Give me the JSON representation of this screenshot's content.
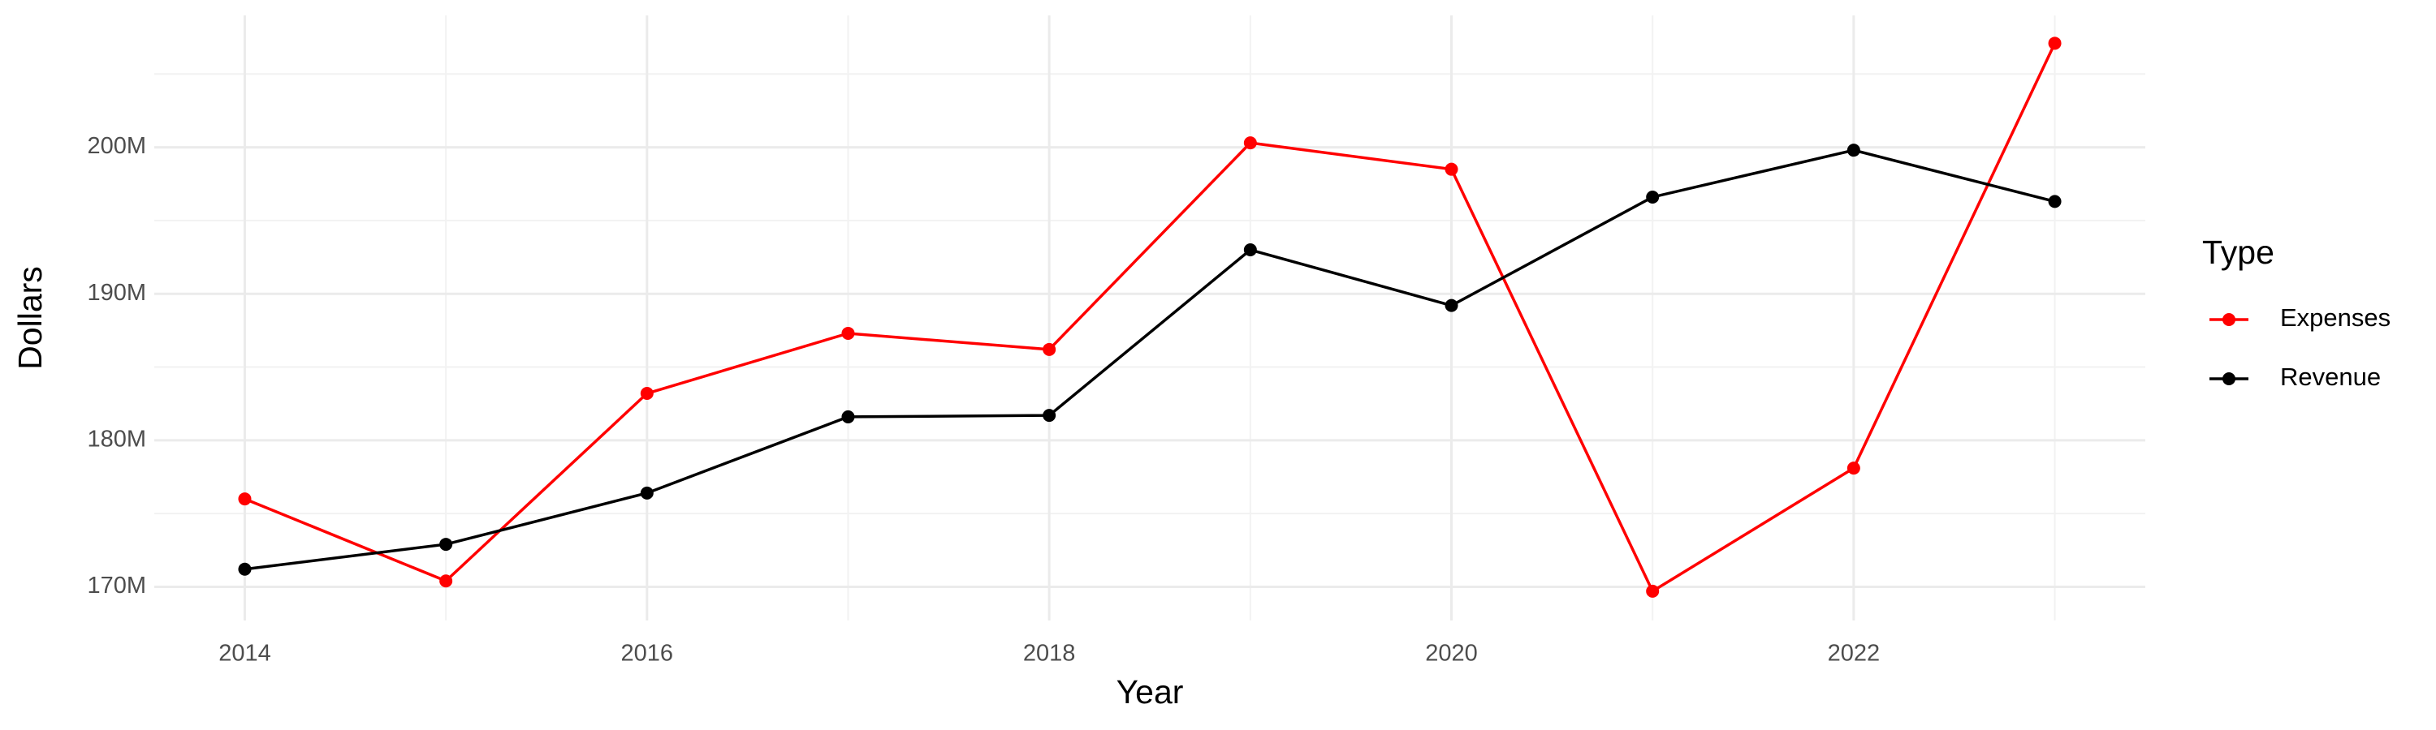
{
  "chart_data": {
    "type": "line",
    "x_label": "Year",
    "y_label": "Dollars",
    "legend_title": "Type",
    "x": [
      2014,
      2015,
      2016,
      2017,
      2018,
      2019,
      2020,
      2021,
      2022,
      2023
    ],
    "series": [
      {
        "name": "Expenses",
        "color": "#ff0000",
        "values": [
          176000000,
          170400000,
          183200000,
          187300000,
          186200000,
          200300000,
          198500000,
          169700000,
          178100000,
          207100000
        ]
      },
      {
        "name": "Revenue",
        "color": "#000000",
        "values": [
          171200000,
          172900000,
          176400000,
          181600000,
          181700000,
          193000000,
          189200000,
          196600000,
          199800000,
          196300000
        ]
      }
    ],
    "xlim": [
      2013.55,
      2023.45
    ],
    "xticks": [
      2014,
      2016,
      2018,
      2020,
      2022
    ],
    "ylim": [
      167700000,
      209000000
    ],
    "yticks": [
      {
        "value": 170000000,
        "label": "170M"
      },
      {
        "value": 180000000,
        "label": "180M"
      },
      {
        "value": 190000000,
        "label": "190M"
      },
      {
        "value": 200000000,
        "label": "200M"
      }
    ],
    "grid": true,
    "legend": "right"
  }
}
